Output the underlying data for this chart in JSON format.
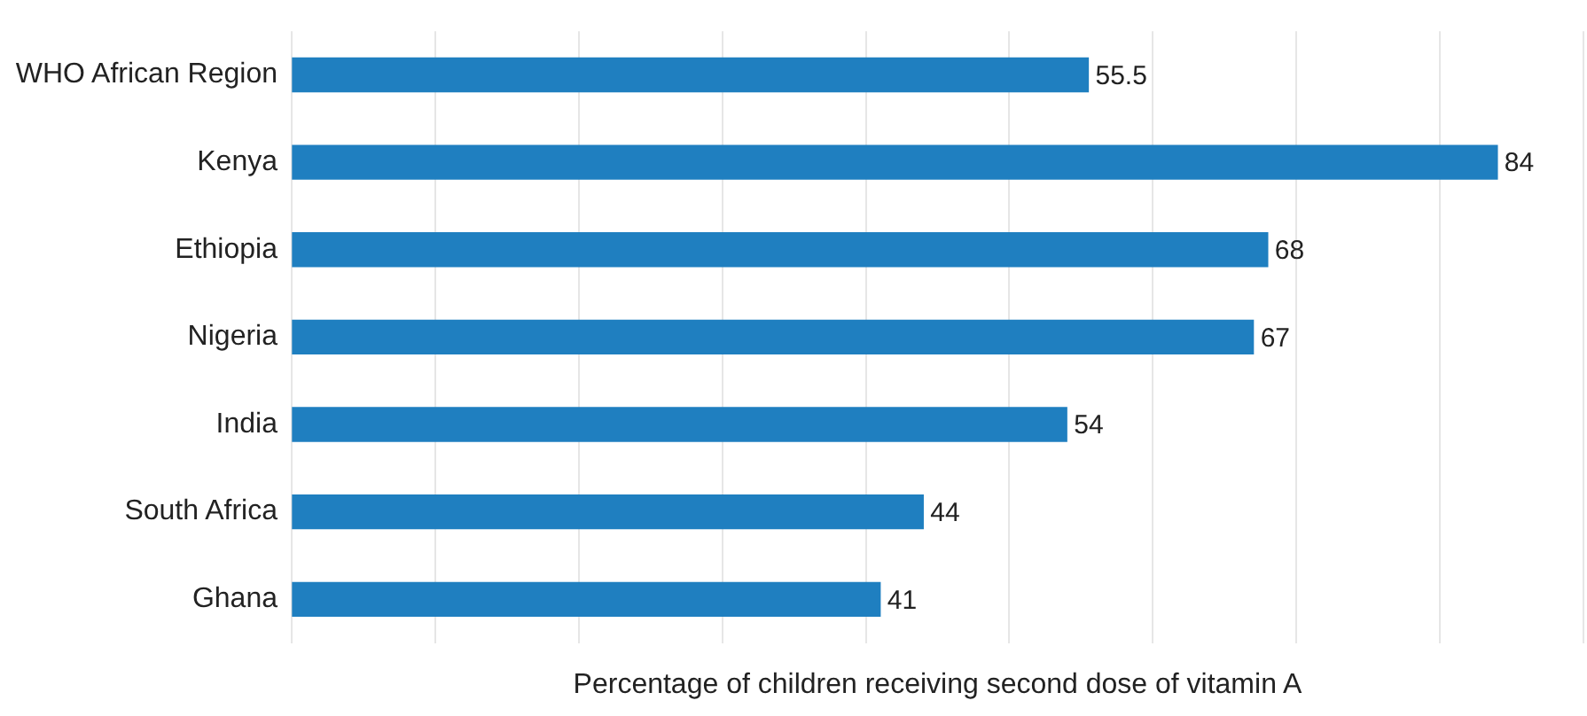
{
  "chart_data": {
    "type": "bar",
    "orientation": "horizontal",
    "xlabel": "Percentage of children receiving second dose of vitamin A",
    "categories": [
      "WHO African Region",
      "Kenya",
      "Ethiopia",
      "Nigeria",
      "India",
      "South Africa",
      "Ghana"
    ],
    "values": [
      55.5,
      84,
      68,
      67,
      54,
      44,
      41
    ],
    "color": "#1f7fc0",
    "xlim": [
      0,
      90
    ],
    "xticks": [
      {
        "value": 0,
        "label": null
      },
      {
        "value": 10,
        "label": null
      },
      {
        "value": 20,
        "label": null
      },
      {
        "value": 30,
        "label": null
      },
      {
        "value": 40,
        "label": null
      },
      {
        "value": 50,
        "label": null
      },
      {
        "value": 60,
        "label": null
      },
      {
        "value": 70,
        "label": null
      },
      {
        "value": 80,
        "label": null
      },
      {
        "value": 90,
        "label": null
      }
    ],
    "grid": "x",
    "tick_labels": "y",
    "data_labels": true,
    "legend": false
  }
}
